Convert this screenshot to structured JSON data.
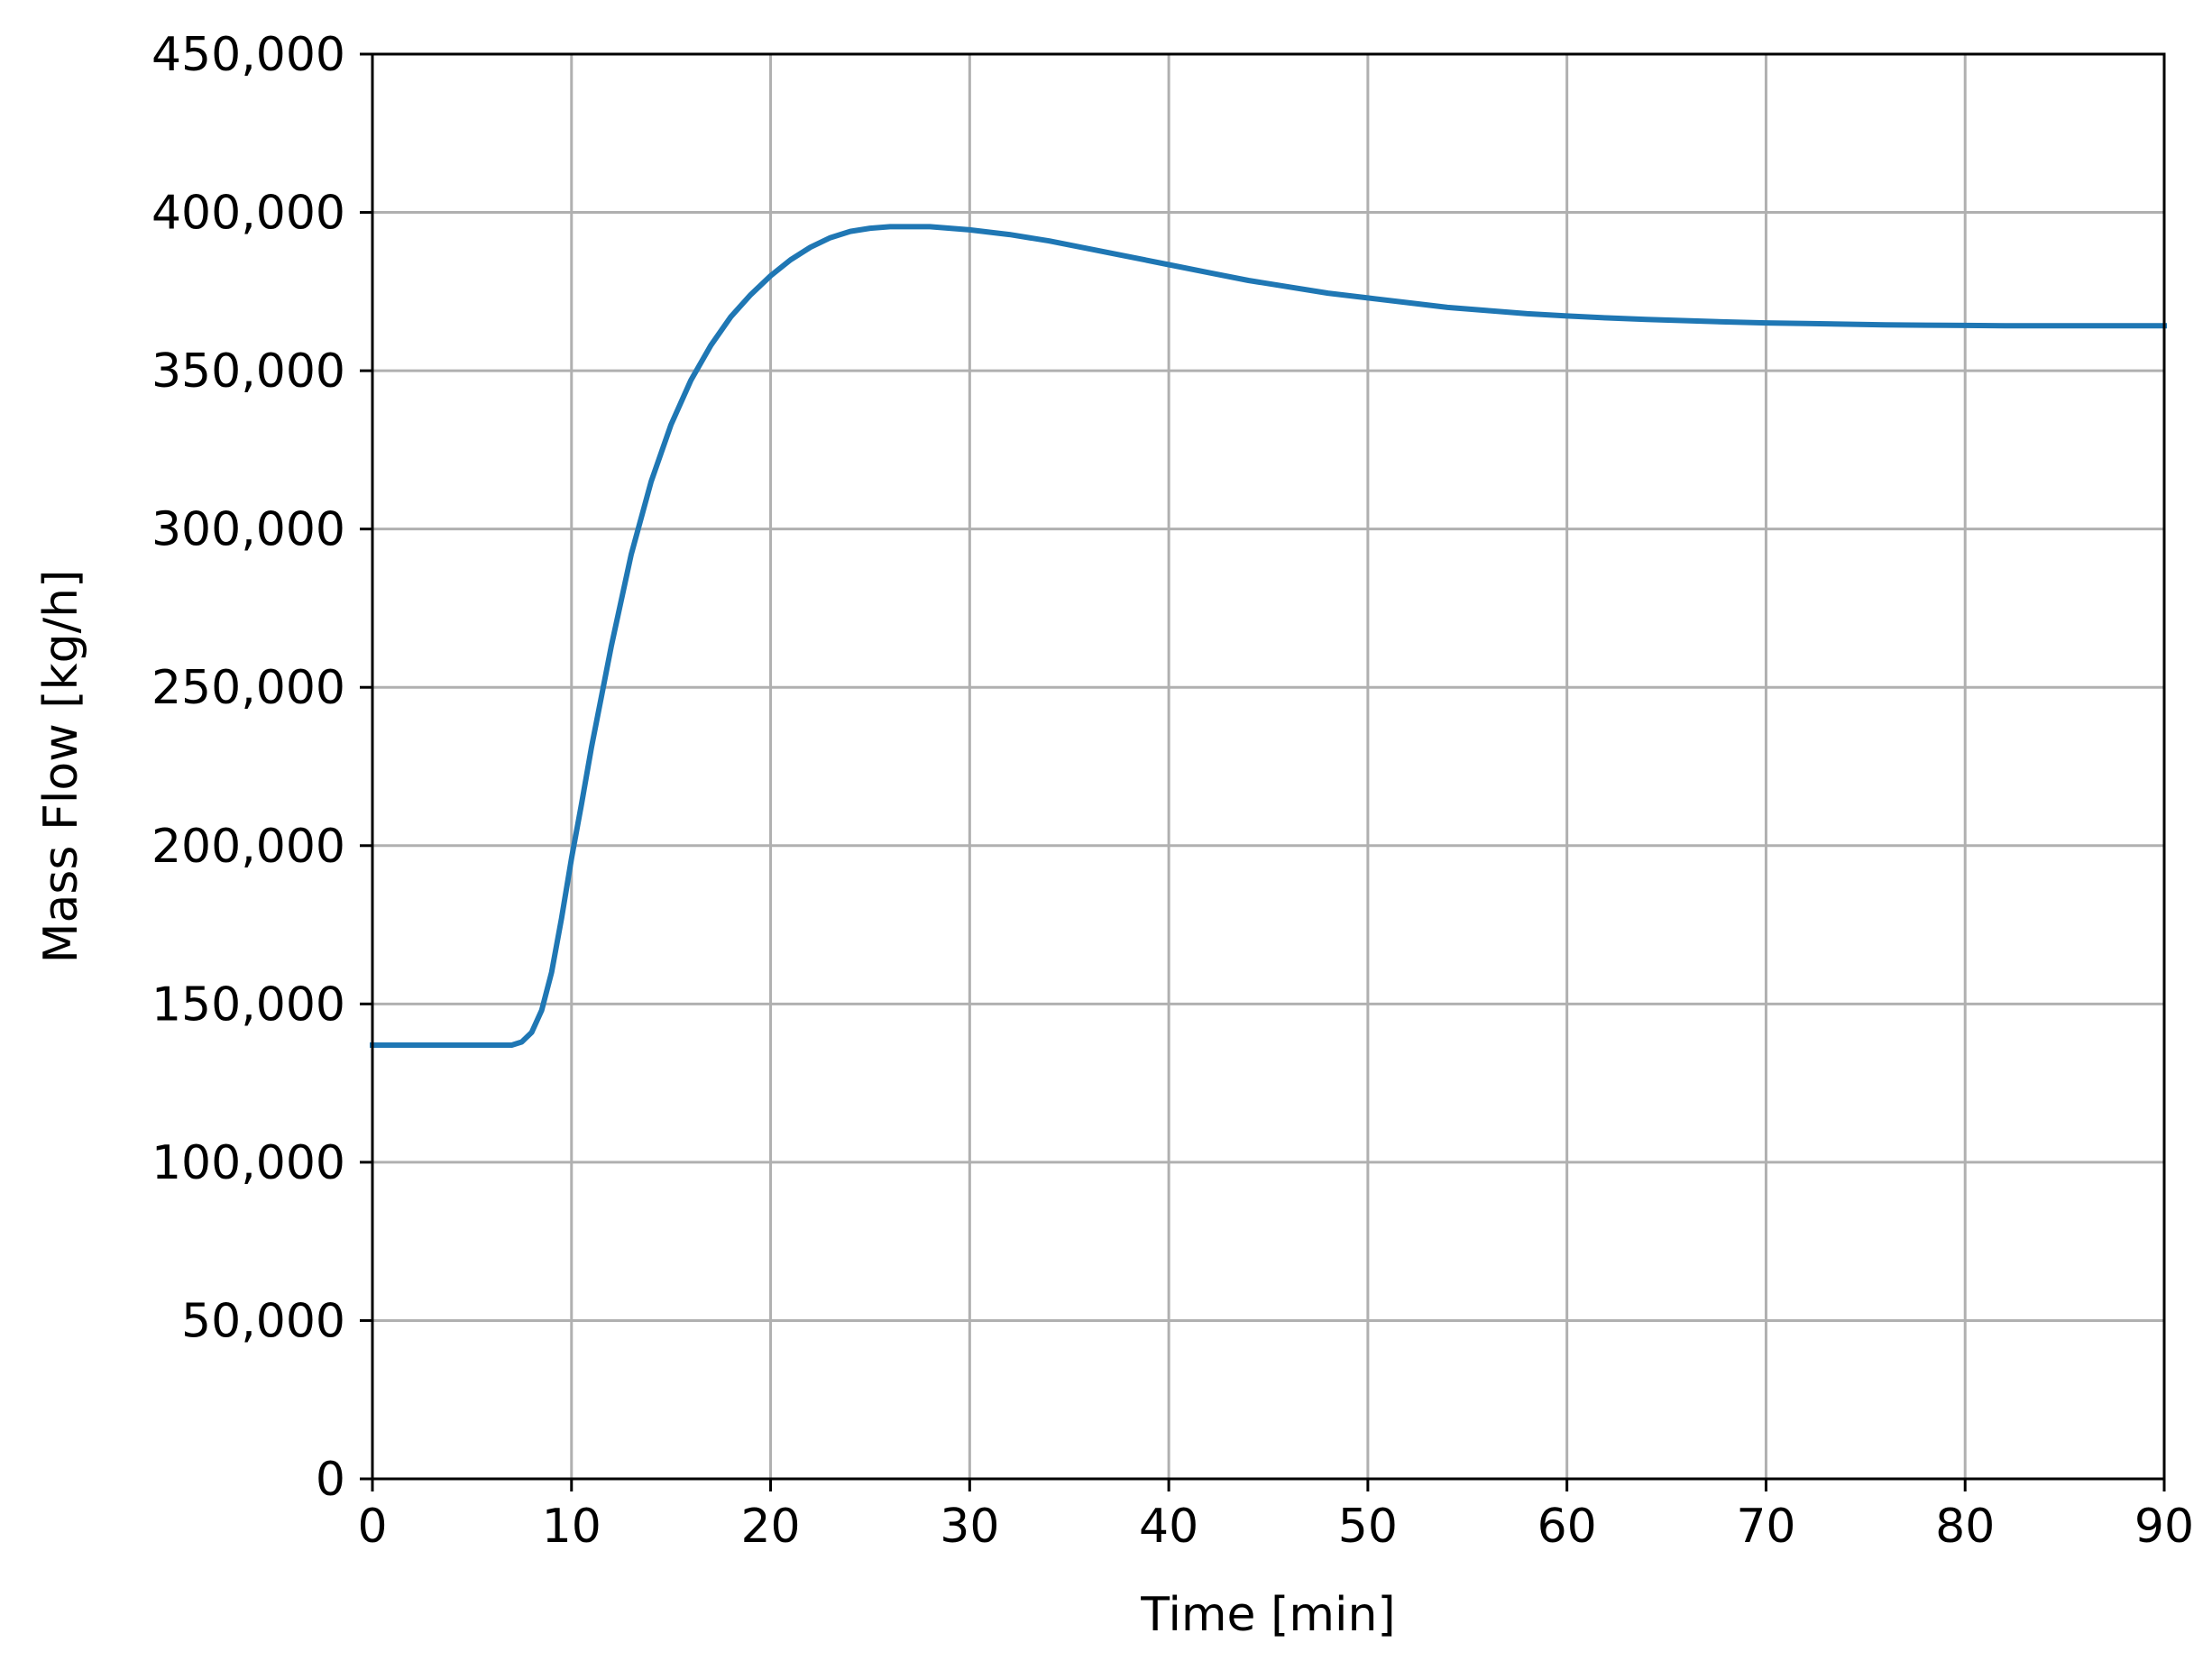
{
  "chart_data": {
    "type": "line",
    "xlabel": "Time [min]",
    "ylabel": "Mass Flow [kg/h]",
    "xlim": [
      0,
      90
    ],
    "ylim": [
      0,
      450000
    ],
    "x_ticks": [
      0,
      10,
      20,
      30,
      40,
      50,
      60,
      70,
      80,
      90
    ],
    "x_tick_labels": [
      "0",
      "10",
      "20",
      "30",
      "40",
      "50",
      "60",
      "70",
      "80",
      "90"
    ],
    "y_ticks": [
      0,
      50000,
      100000,
      150000,
      200000,
      250000,
      300000,
      350000,
      400000,
      450000
    ],
    "y_tick_labels": [
      "0",
      "50,000",
      "100,000",
      "150,000",
      "200,000",
      "250,000",
      "300,000",
      "350,000",
      "400,000",
      "450,000"
    ],
    "grid": true,
    "legend": "none",
    "series": [
      {
        "color": "#1f77b4",
        "x": [
          0,
          2,
          4,
          6,
          7,
          7.5,
          8,
          8.5,
          9,
          9.5,
          10,
          10.5,
          11,
          12,
          13,
          14,
          15,
          16,
          17,
          18,
          19,
          20,
          21,
          22,
          23,
          24,
          25,
          26,
          27,
          28,
          29,
          30,
          32,
          34,
          36,
          38,
          40,
          42,
          44,
          46,
          48,
          50,
          52,
          54,
          56,
          58,
          60,
          62,
          64,
          66,
          68,
          70,
          72,
          74,
          76,
          78,
          80,
          82,
          84,
          86,
          88,
          90
        ],
        "y": [
          137000,
          137000,
          137000,
          137000,
          137000,
          138000,
          141000,
          148000,
          160000,
          177000,
          196000,
          213000,
          231000,
          263000,
          292000,
          315000,
          333000,
          347000,
          358000,
          367000,
          374000,
          380000,
          385000,
          389000,
          392000,
          394000,
          395000,
          395500,
          395500,
          395500,
          395000,
          394500,
          393000,
          391000,
          388500,
          386000,
          383500,
          381000,
          378500,
          376500,
          374500,
          373000,
          371500,
          370000,
          369000,
          368000,
          367300,
          366700,
          366200,
          365800,
          365400,
          365100,
          364900,
          364700,
          364500,
          364400,
          364300,
          364200,
          364200,
          364200,
          364200,
          364200
        ]
      }
    ]
  }
}
